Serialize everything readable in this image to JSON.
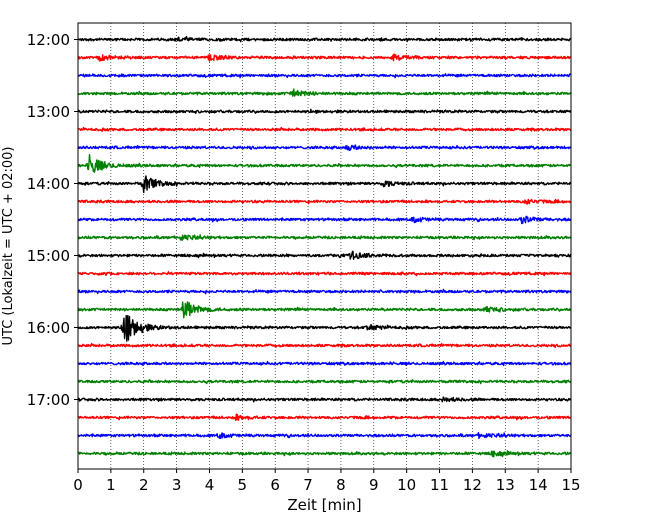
{
  "chart_data": {
    "type": "line",
    "title": "",
    "xlabel": "Zeit  [min]",
    "ylabel": "UTC (Lokalzeit = UTC + 02:00)",
    "xlim": [
      0,
      15
    ],
    "x_ticks": [
      0,
      1,
      2,
      3,
      4,
      5,
      6,
      7,
      8,
      9,
      10,
      11,
      12,
      13,
      14,
      15
    ],
    "y_tick_labels": [
      "12:00",
      "13:00",
      "14:00",
      "15:00",
      "16:00",
      "17:00"
    ],
    "grid": "vertical dotted",
    "trace_colors": [
      "#000000",
      "#ff0000",
      "#0000ff",
      "#008000"
    ],
    "trace_start_times": [
      "12:00",
      "12:15",
      "12:30",
      "12:45",
      "13:00",
      "13:15",
      "13:30",
      "13:45",
      "14:00",
      "14:15",
      "14:30",
      "14:45",
      "15:00",
      "15:15",
      "15:30",
      "15:45",
      "16:00",
      "16:15",
      "16:30",
      "16:45",
      "17:00",
      "17:15",
      "17:30",
      "17:45"
    ],
    "events": [
      {
        "trace": 0,
        "t": 3.0,
        "amp": 0.25
      },
      {
        "trace": 1,
        "t": 0.6,
        "amp": 0.35
      },
      {
        "trace": 1,
        "t": 4.0,
        "amp": 0.35
      },
      {
        "trace": 1,
        "t": 9.6,
        "amp": 0.4
      },
      {
        "trace": 3,
        "t": 6.5,
        "amp": 0.5
      },
      {
        "trace": 6,
        "t": 8.2,
        "amp": 0.3
      },
      {
        "trace": 7,
        "t": 0.35,
        "amp": 1.2
      },
      {
        "trace": 8,
        "t": 2.0,
        "amp": 1.0
      },
      {
        "trace": 8,
        "t": 9.3,
        "amp": 0.3
      },
      {
        "trace": 9,
        "t": 13.6,
        "amp": 0.3
      },
      {
        "trace": 10,
        "t": 10.2,
        "amp": 0.3
      },
      {
        "trace": 10,
        "t": 13.5,
        "amp": 0.4
      },
      {
        "trace": 11,
        "t": 3.1,
        "amp": 0.35
      },
      {
        "trace": 12,
        "t": 8.3,
        "amp": 0.45
      },
      {
        "trace": 15,
        "t": 3.2,
        "amp": 1.2
      },
      {
        "trace": 15,
        "t": 12.4,
        "amp": 0.35
      },
      {
        "trace": 16,
        "t": 1.4,
        "amp": 2.2
      },
      {
        "trace": 16,
        "t": 8.8,
        "amp": 0.3
      },
      {
        "trace": 20,
        "t": 11.1,
        "amp": 0.25
      },
      {
        "trace": 21,
        "t": 4.8,
        "amp": 0.25
      },
      {
        "trace": 22,
        "t": 4.3,
        "amp": 0.25
      },
      {
        "trace": 22,
        "t": 12.2,
        "amp": 0.3
      },
      {
        "trace": 23,
        "t": 12.6,
        "amp": 0.3
      }
    ]
  }
}
